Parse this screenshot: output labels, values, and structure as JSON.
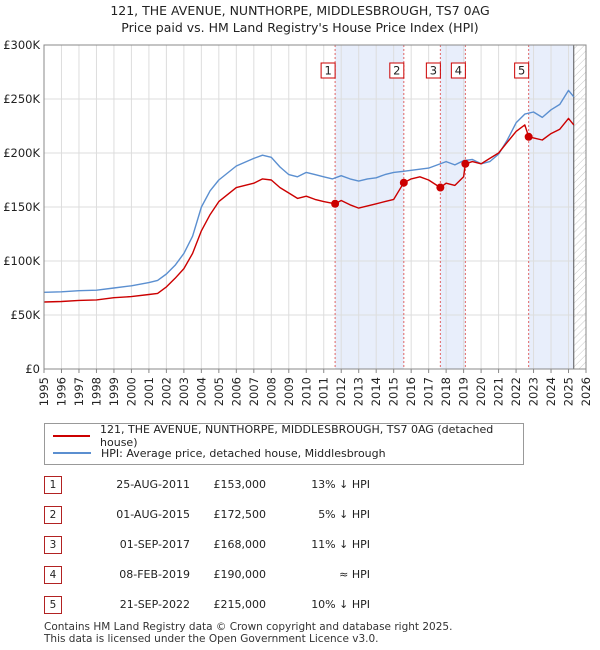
{
  "title_line1": "121, THE AVENUE, NUNTHORPE, MIDDLESBROUGH, TS7 0AG",
  "title_line2": "Price paid vs. HM Land Registry's House Price Index (HPI)",
  "chart_data": {
    "type": "line",
    "title": "121, THE AVENUE, NUNTHORPE, MIDDLESBROUGH, TS7 0AG — Price paid vs. HM Land Registry's House Price Index (HPI)",
    "xlabel": "",
    "ylabel": "",
    "xlim": [
      1995,
      2026
    ],
    "ylim": [
      0,
      300000
    ],
    "x_ticks": [
      "1995",
      "1996",
      "1997",
      "1998",
      "1999",
      "2000",
      "2001",
      "2002",
      "2003",
      "2004",
      "2005",
      "2006",
      "2007",
      "2008",
      "2009",
      "2010",
      "2011",
      "2012",
      "2013",
      "2014",
      "2015",
      "2016",
      "2017",
      "2018",
      "2019",
      "2020",
      "2021",
      "2022",
      "2023",
      "2024",
      "2025",
      "2026"
    ],
    "y_ticks": [
      {
        "value": 0,
        "label": "£0"
      },
      {
        "value": 50000,
        "label": "£50K"
      },
      {
        "value": 100000,
        "label": "£100K"
      },
      {
        "value": 150000,
        "label": "£150K"
      },
      {
        "value": 200000,
        "label": "£200K"
      },
      {
        "value": 250000,
        "label": "£250K"
      },
      {
        "value": 300000,
        "label": "£300K"
      }
    ],
    "colors": {
      "property": "#cc0000",
      "hpi": "#5b8fd0",
      "band": "#e8eefb",
      "grid": "#dddddd",
      "vline": "#e06666",
      "hatch": "#bbbbbb"
    },
    "series": [
      {
        "name": "121, THE AVENUE, NUNTHORPE, MIDDLESBROUGH, TS7 0AG (detached house)",
        "x": [
          1995.0,
          1996.0,
          1997.0,
          1998.0,
          1999.0,
          2000.0,
          2001.0,
          2001.5,
          2002.0,
          2002.5,
          2003.0,
          2003.5,
          2004.0,
          2004.5,
          2005.0,
          2006.0,
          2007.0,
          2007.5,
          2008.0,
          2008.5,
          2009.0,
          2009.5,
          2010.0,
          2010.5,
          2011.0,
          2011.65,
          2012.0,
          2012.5,
          2013.0,
          2013.5,
          2014.0,
          2014.5,
          2015.0,
          2015.58,
          2016.0,
          2016.5,
          2017.0,
          2017.67,
          2018.0,
          2018.5,
          2019.0,
          2019.1,
          2019.5,
          2020.0,
          2020.5,
          2021.0,
          2021.5,
          2022.0,
          2022.5,
          2022.72,
          2023.0,
          2023.5,
          2024.0,
          2024.5,
          2025.0,
          2025.3
        ],
        "values": [
          62000,
          62500,
          63500,
          64000,
          66000,
          67000,
          69000,
          70000,
          76000,
          84000,
          93000,
          107000,
          128000,
          143000,
          155000,
          168000,
          172000,
          176000,
          175000,
          168000,
          163000,
          158000,
          160000,
          157000,
          155000,
          153000,
          156000,
          152000,
          149000,
          151000,
          153000,
          155000,
          157000,
          172500,
          176000,
          178000,
          175000,
          168000,
          172000,
          170000,
          178000,
          190000,
          192000,
          190000,
          195000,
          200000,
          210000,
          220000,
          226000,
          215000,
          214000,
          212000,
          218000,
          222000,
          232000,
          226000
        ]
      },
      {
        "name": "HPI: Average price, detached house, Middlesbrough",
        "x": [
          1995.0,
          1996.0,
          1997.0,
          1998.0,
          1999.0,
          2000.0,
          2001.0,
          2001.5,
          2002.0,
          2002.5,
          2003.0,
          2003.5,
          2004.0,
          2004.5,
          2005.0,
          2006.0,
          2007.0,
          2007.5,
          2008.0,
          2008.5,
          2009.0,
          2009.5,
          2010.0,
          2010.5,
          2011.0,
          2011.5,
          2012.0,
          2012.5,
          2013.0,
          2013.5,
          2014.0,
          2014.5,
          2015.0,
          2015.5,
          2016.0,
          2016.5,
          2017.0,
          2017.5,
          2018.0,
          2018.5,
          2019.0,
          2019.5,
          2020.0,
          2020.5,
          2021.0,
          2021.5,
          2022.0,
          2022.5,
          2023.0,
          2023.5,
          2024.0,
          2024.5,
          2025.0,
          2025.3
        ],
        "values": [
          71000,
          71500,
          72500,
          73000,
          75000,
          77000,
          80000,
          82000,
          88000,
          96000,
          107000,
          123000,
          150000,
          165000,
          175000,
          188000,
          195000,
          198000,
          196000,
          187000,
          180000,
          178000,
          182000,
          180000,
          178000,
          176000,
          179000,
          176000,
          174000,
          176000,
          177000,
          180000,
          182000,
          183000,
          184000,
          185000,
          186000,
          189000,
          192000,
          189000,
          193000,
          194000,
          190000,
          192000,
          199000,
          212000,
          228000,
          236000,
          238000,
          233000,
          240000,
          245000,
          258000,
          252000
        ]
      }
    ],
    "sales": [
      {
        "id": "1",
        "x": 2011.65,
        "value": 153000
      },
      {
        "id": "2",
        "x": 2015.58,
        "value": 172500
      },
      {
        "id": "3",
        "x": 2017.67,
        "value": 168000
      },
      {
        "id": "4",
        "x": 2019.1,
        "value": 190000
      },
      {
        "id": "5",
        "x": 2022.72,
        "value": 215000
      }
    ],
    "band_pairs": [
      [
        2011.65,
        2015.58
      ],
      [
        2017.67,
        2019.1
      ],
      [
        2022.72,
        2025.3
      ]
    ],
    "projection_from": 2025.3
  },
  "legend": {
    "property_label": "121, THE AVENUE, NUNTHORPE, MIDDLESBROUGH, TS7 0AG (detached house)",
    "hpi_label": "HPI: Average price, detached house, Middlesbrough"
  },
  "sales_table": [
    {
      "num": "1",
      "date": "25-AUG-2011",
      "price": "£153,000",
      "hpi": "13% ↓ HPI"
    },
    {
      "num": "2",
      "date": "01-AUG-2015",
      "price": "£172,500",
      "hpi": "5% ↓ HPI"
    },
    {
      "num": "3",
      "date": "01-SEP-2017",
      "price": "£168,000",
      "hpi": "11% ↓ HPI"
    },
    {
      "num": "4",
      "date": "08-FEB-2019",
      "price": "£190,000",
      "hpi": "≈ HPI"
    },
    {
      "num": "5",
      "date": "21-SEP-2022",
      "price": "£215,000",
      "hpi": "10% ↓ HPI"
    }
  ],
  "footer_line1": "Contains HM Land Registry data © Crown copyright and database right 2025.",
  "footer_line2": "This data is licensed under the Open Government Licence v3.0."
}
